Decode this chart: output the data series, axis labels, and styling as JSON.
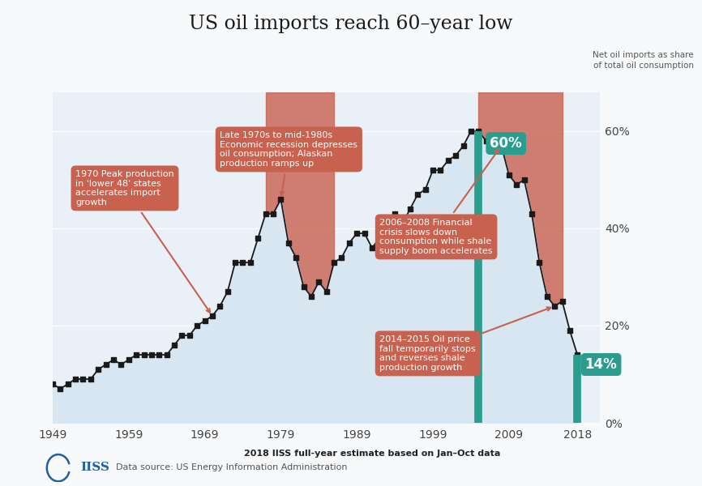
{
  "title": "US oil imports reach 60–year low",
  "ylabel_right": "Net oil imports as share\nof total oil consumption",
  "source": "Data source: US Energy Information Administration",
  "footnote": "2018 IISS full-year estimate based on Jan–Oct data",
  "background_color": "#f7f9fb",
  "plot_bg_color": "#eaf0f7",
  "years": [
    1949,
    1950,
    1951,
    1952,
    1953,
    1954,
    1955,
    1956,
    1957,
    1958,
    1959,
    1960,
    1961,
    1962,
    1963,
    1964,
    1965,
    1966,
    1967,
    1968,
    1969,
    1970,
    1971,
    1972,
    1973,
    1974,
    1975,
    1976,
    1977,
    1978,
    1979,
    1980,
    1981,
    1982,
    1983,
    1984,
    1985,
    1986,
    1987,
    1988,
    1989,
    1990,
    1991,
    1992,
    1993,
    1994,
    1995,
    1996,
    1997,
    1998,
    1999,
    2000,
    2001,
    2002,
    2003,
    2004,
    2005,
    2006,
    2007,
    2008,
    2009,
    2010,
    2011,
    2012,
    2013,
    2014,
    2015,
    2016,
    2017,
    2018
  ],
  "values": [
    8,
    7,
    8,
    9,
    9,
    9,
    11,
    12,
    13,
    12,
    13,
    14,
    14,
    14,
    14,
    14,
    16,
    18,
    18,
    20,
    21,
    22,
    24,
    27,
    33,
    33,
    33,
    38,
    43,
    43,
    46,
    37,
    34,
    28,
    26,
    29,
    27,
    33,
    34,
    37,
    39,
    39,
    36,
    38,
    41,
    43,
    41,
    44,
    47,
    48,
    52,
    52,
    54,
    55,
    57,
    60,
    60,
    58,
    58,
    57,
    51,
    49,
    50,
    43,
    33,
    26,
    24,
    25,
    19,
    14
  ],
  "highlight_regions": [
    {
      "x_start": 1977,
      "x_end": 1986,
      "color": "#c8614e",
      "alpha": 0.8
    },
    {
      "x_start": 2005,
      "x_end": 2016,
      "color": "#c8614e",
      "alpha": 0.8
    }
  ],
  "yticks": [
    0,
    20,
    40,
    60
  ],
  "ytick_labels": [
    "0%",
    "20%",
    "40%",
    "60%"
  ],
  "xtick_years": [
    1949,
    1959,
    1969,
    1979,
    1989,
    1999,
    2009,
    2018
  ],
  "line_color": "#1a1a1a",
  "marker_color": "#1a1a1a",
  "area_fill_color": "#d8e6f2",
  "teal_color": "#2a9d8f",
  "ann_bg": "#c8614e",
  "ann_text_color": "#ffffff"
}
